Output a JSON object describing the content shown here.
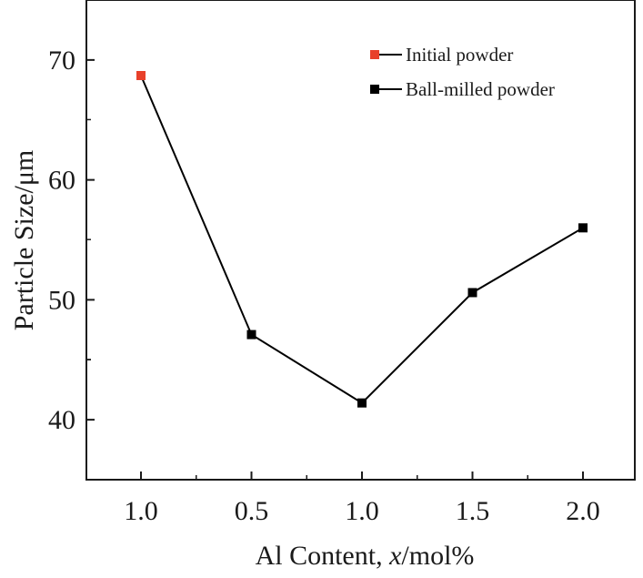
{
  "chart_data": {
    "type": "line",
    "xlabel": "Al Content, x/mol%",
    "xlabel_parts": {
      "prefix": "Al Content, ",
      "var": "x",
      "suffix": "/mol%"
    },
    "ylabel": "Particle Size/μm",
    "categories": [
      "1.0",
      "0.5",
      "1.0",
      "1.5",
      "2.0"
    ],
    "ylim": [
      35,
      75
    ],
    "yticks": [
      40,
      50,
      60,
      70
    ],
    "grid": false,
    "legend_position": "top-right",
    "series": [
      {
        "name": "Initial powder",
        "color": "#e8402a",
        "marker": "square",
        "points": [
          {
            "category_index": 0,
            "y": 68.7
          }
        ]
      },
      {
        "name": "Ball-milled powder",
        "color": "#000000",
        "marker": "square",
        "points": [
          {
            "category_index": 1,
            "y": 47.1
          },
          {
            "category_index": 2,
            "y": 41.4
          },
          {
            "category_index": 3,
            "y": 50.6
          },
          {
            "category_index": 4,
            "y": 56.0
          }
        ]
      }
    ],
    "connecting_line": {
      "color": "#000000",
      "points": [
        {
          "category_index": 0,
          "y": 68.7
        },
        {
          "category_index": 1,
          "y": 47.1
        },
        {
          "category_index": 2,
          "y": 41.4
        },
        {
          "category_index": 3,
          "y": 50.6
        },
        {
          "category_index": 4,
          "y": 56.0
        }
      ]
    }
  }
}
